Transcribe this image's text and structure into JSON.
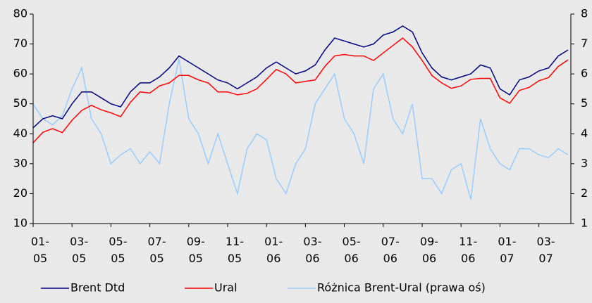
{
  "chart_data": {
    "type": "line",
    "categories": [
      "01-\n05",
      null,
      null,
      null,
      "03-\n05",
      null,
      null,
      null,
      "05-\n05",
      null,
      null,
      null,
      "07-\n05",
      null,
      null,
      null,
      "09-\n05",
      null,
      null,
      null,
      "11-\n05",
      null,
      null,
      null,
      "01-\n06",
      null,
      null,
      null,
      "03-\n06",
      null,
      null,
      null,
      "05-\n06",
      null,
      null,
      null,
      "07-\n06",
      null,
      null,
      null,
      "09-\n06",
      null,
      null,
      null,
      "11-\n06",
      null,
      null,
      null,
      "01-\n07",
      null,
      null,
      null,
      "03-\n07",
      null,
      null,
      null
    ],
    "series": [
      {
        "name": "Brent Dtd",
        "color": "#000080",
        "values": [
          42,
          45,
          46,
          45,
          50,
          54,
          54,
          52,
          50,
          49,
          54,
          57,
          57,
          59,
          62,
          66,
          64,
          62,
          60,
          58,
          57,
          55,
          57,
          59,
          62,
          64,
          62,
          60,
          61,
          63,
          68,
          72,
          71,
          70,
          69,
          70,
          73,
          74,
          76,
          74,
          67,
          62,
          59,
          58,
          59,
          60,
          63,
          62,
          55,
          53,
          58,
          59,
          61,
          62,
          66,
          68
        ]
      },
      {
        "name": "Ural",
        "color": "#ff0000",
        "values": [
          37,
          40.5,
          41.7,
          40.4,
          44.5,
          47.8,
          49.5,
          48,
          47,
          45.7,
          50.5,
          54,
          53.6,
          56,
          57,
          59.5,
          59.5,
          58,
          57,
          54,
          54,
          53,
          53.5,
          55,
          58.2,
          61.5,
          60,
          57,
          57.5,
          58,
          62.5,
          66,
          66.5,
          66,
          66,
          64.5,
          67,
          69.5,
          72,
          69,
          64.5,
          59.5,
          57,
          55.2,
          56,
          58.2,
          58.5,
          58.5,
          52,
          50.2,
          54.5,
          55.5,
          57.7,
          58.8,
          62.5,
          64.7
        ]
      },
      {
        "name": "Różnica Brent-Ural (prawa oś)",
        "color": "#99ccff",
        "axis": "y2",
        "values": [
          5,
          4.5,
          4.3,
          4.6,
          5.5,
          6.2,
          4.5,
          4,
          3,
          3.3,
          3.5,
          3,
          3.4,
          3,
          5,
          6.5,
          4.5,
          4,
          3,
          4,
          3,
          2,
          3.5,
          4,
          3.8,
          2.5,
          2,
          3,
          3.5,
          5,
          5.5,
          6,
          4.5,
          4,
          3,
          5.5,
          6,
          4.5,
          4,
          5,
          2.5,
          2.5,
          2,
          2.8,
          3,
          1.8,
          4.5,
          3.5,
          3,
          2.8,
          3.5,
          3.5,
          3.3,
          3.2,
          3.5,
          3.3
        ]
      }
    ],
    "ylim": [
      10,
      80
    ],
    "yticks": [
      10,
      20,
      30,
      40,
      50,
      60,
      70,
      80
    ],
    "y2lim": [
      1,
      8
    ],
    "y2ticks": [
      1,
      2,
      3,
      4,
      5,
      6,
      7,
      8
    ],
    "legend": "bottom"
  }
}
